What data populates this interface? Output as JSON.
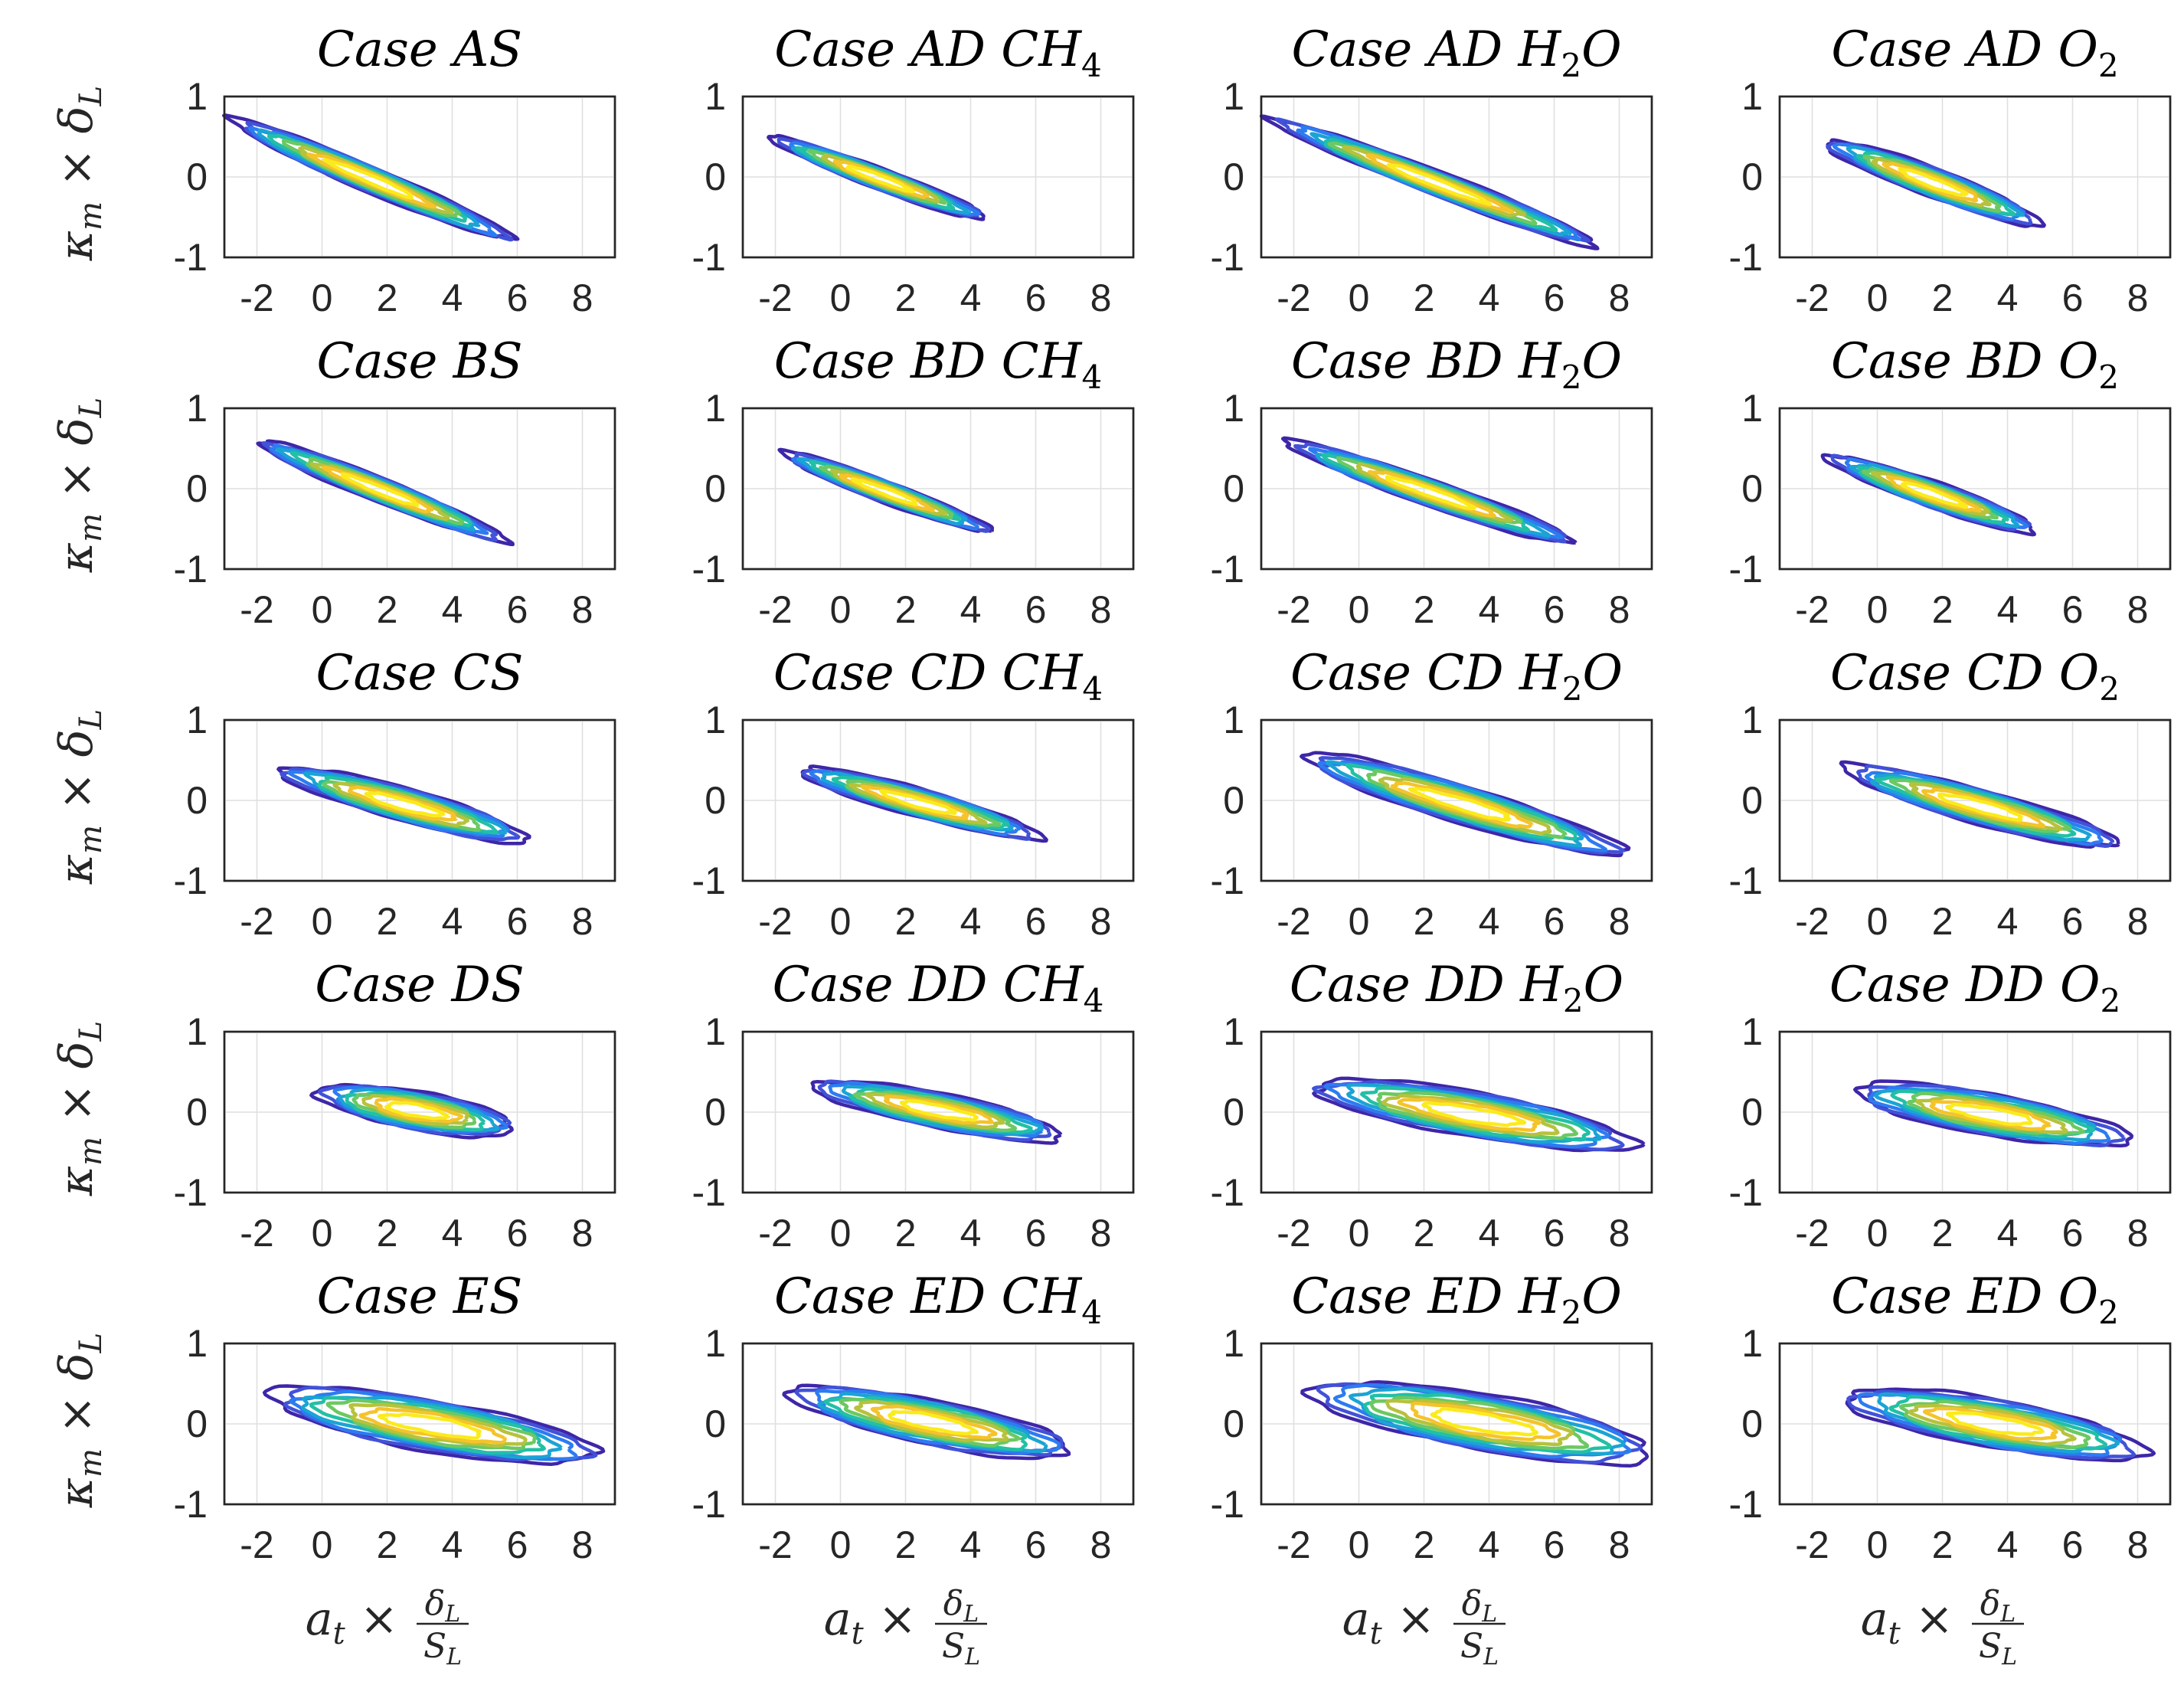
{
  "figure": {
    "ylabel_main": "κ",
    "ylabel_sub": "m",
    "ylabel_times": "×",
    "ylabel_delta": "δ",
    "ylabel_delta_sub": "L",
    "xlabel_main": "a",
    "xlabel_sub": "t",
    "xlabel_times": "×",
    "xlabel_num": "δ",
    "xlabel_num_sub": "L",
    "xlabel_den": "S",
    "xlabel_den_sub": "L",
    "colors": [
      "#3e26a8",
      "#4152d8",
      "#2c7cf1",
      "#1aa4d4",
      "#22c0a5",
      "#6cc862",
      "#b6c23c",
      "#f5c32a",
      "#faeb1c"
    ]
  },
  "chart_data": {
    "type": "contour",
    "description_axes": {
      "xlim": [
        -3,
        9
      ],
      "ylim": [
        -1,
        1
      ],
      "xticks": [
        -2,
        0,
        2,
        4,
        6,
        8
      ],
      "xtick_labels": [
        "-2",
        "0",
        "2",
        "4",
        "6",
        "8"
      ],
      "yticks": [
        1,
        0,
        -1
      ],
      "ytick_labels": [
        "1",
        "0",
        "-1"
      ],
      "grid": true
    },
    "panels": [
      {
        "title": "Case AS",
        "sub": "",
        "rest": "",
        "cx": 1.5,
        "cy": -0.03,
        "hx": 4.3,
        "hy": 0.17,
        "rho": -0.17
      },
      {
        "title": "Case AD CH",
        "sub": "4",
        "rest": "",
        "cx": 1.2,
        "cy": -0.02,
        "hx": 3.3,
        "hy": 0.14,
        "rho": -0.15
      },
      {
        "title": "Case AD H",
        "sub": "2",
        "rest": "O",
        "cx": 2.4,
        "cy": -0.08,
        "hx": 5.0,
        "hy": 0.16,
        "rho": -0.155
      },
      {
        "title": "Case AD O",
        "sub": "2",
        "rest": "",
        "cx": 1.7,
        "cy": -0.07,
        "hx": 3.3,
        "hy": 0.19,
        "rho": -0.15
      },
      {
        "title": "Case BS",
        "sub": "",
        "rest": "",
        "cx": 1.8,
        "cy": -0.02,
        "hx": 3.8,
        "hy": 0.16,
        "rho": -0.16
      },
      {
        "title": "Case BD CH",
        "sub": "4",
        "rest": "",
        "cx": 1.4,
        "cy": -0.04,
        "hx": 3.2,
        "hy": 0.14,
        "rho": -0.15
      },
      {
        "title": "Case BD H",
        "sub": "2",
        "rest": "O",
        "cx": 2.2,
        "cy": -0.05,
        "hx": 4.4,
        "hy": 0.17,
        "rho": -0.14
      },
      {
        "title": "Case BD O",
        "sub": "2",
        "rest": "",
        "cx": 1.7,
        "cy": -0.07,
        "hx": 3.2,
        "hy": 0.17,
        "rho": -0.14
      },
      {
        "title": "Case CS",
        "sub": "",
        "rest": "",
        "cx": 2.5,
        "cy": -0.05,
        "hx": 3.8,
        "hy": 0.21,
        "rho": -0.11
      },
      {
        "title": "Case CD CH",
        "sub": "4",
        "rest": "",
        "cx": 2.4,
        "cy": -0.03,
        "hx": 3.7,
        "hy": 0.18,
        "rho": -0.11
      },
      {
        "title": "Case CD H",
        "sub": "2",
        "rest": "O",
        "cx": 3.2,
        "cy": -0.05,
        "hx": 4.9,
        "hy": 0.24,
        "rho": -0.12
      },
      {
        "title": "Case CD O",
        "sub": "2",
        "rest": "",
        "cx": 3.2,
        "cy": -0.08,
        "hx": 4.2,
        "hy": 0.22,
        "rho": -0.11
      },
      {
        "title": "Case DS",
        "sub": "",
        "rest": "",
        "cx": 2.9,
        "cy": 0.02,
        "hx": 3.0,
        "hy": 0.24,
        "rho": -0.07
      },
      {
        "title": "Case DD CH",
        "sub": "4",
        "rest": "",
        "cx": 3.0,
        "cy": 0.02,
        "hx": 3.8,
        "hy": 0.22,
        "rho": -0.08
      },
      {
        "title": "Case DD H",
        "sub": "2",
        "rest": "O",
        "cx": 3.5,
        "cy": -0.03,
        "hx": 4.9,
        "hy": 0.28,
        "rho": -0.07
      },
      {
        "title": "Case DD O",
        "sub": "2",
        "rest": "",
        "cx": 3.5,
        "cy": -0.03,
        "hx": 4.2,
        "hy": 0.26,
        "rho": -0.07
      },
      {
        "title": "Case ES",
        "sub": "",
        "rest": "",
        "cx": 3.4,
        "cy": -0.02,
        "hx": 5.0,
        "hy": 0.32,
        "rho": -0.07
      },
      {
        "title": "Case ED CH",
        "sub": "4",
        "rest": "",
        "cx": 2.8,
        "cy": 0.02,
        "hx": 4.3,
        "hy": 0.28,
        "rho": -0.08
      },
      {
        "title": "Case ED H",
        "sub": "2",
        "rest": "O",
        "cx": 3.8,
        "cy": 0.02,
        "hx": 5.2,
        "hy": 0.35,
        "rho": -0.07
      },
      {
        "title": "Case ED O",
        "sub": "2",
        "rest": "",
        "cx": 3.6,
        "cy": 0.0,
        "hx": 4.6,
        "hy": 0.3,
        "rho": -0.07
      }
    ],
    "contour_levels": [
      1.0,
      0.86,
      0.73,
      0.61,
      0.49,
      0.38,
      0.28,
      0.18,
      0.09
    ]
  }
}
